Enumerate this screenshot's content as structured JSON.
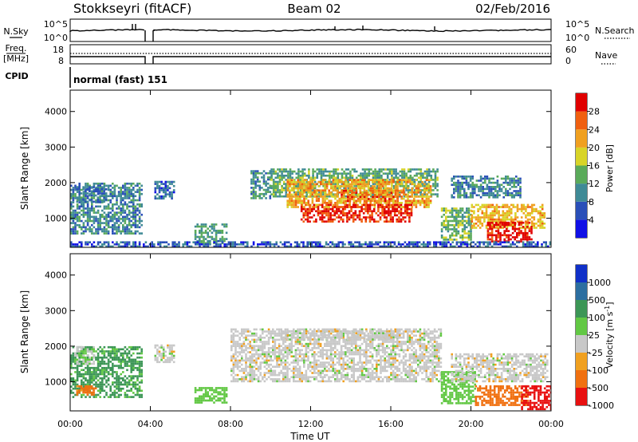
{
  "header": {
    "station": "Stokkseyri (fitACF)",
    "beam": "Beam 02",
    "date": "02/Feb/2016"
  },
  "noise_panel": {
    "left_label": "N.Sky",
    "right_label": "N.Search",
    "ticks_left": [
      "10^5",
      "10^0"
    ],
    "ticks_right": [
      "10^5",
      "10^0"
    ]
  },
  "freq_panel": {
    "left_label_line1": "Freq.",
    "left_label_line2": "[MHz]",
    "right_label": "Nave",
    "ticks_left": [
      "18",
      "8"
    ],
    "ticks_right": [
      "60",
      "0"
    ]
  },
  "cpid": {
    "label": "CPID",
    "mode": "normal (fast) 151"
  },
  "x_axis": {
    "label": "Time UT",
    "ticks": [
      "00:00",
      "04:00",
      "08:00",
      "12:00",
      "16:00",
      "20:00",
      "00:00"
    ]
  },
  "chart_data": [
    {
      "type": "heatmap",
      "name": "power",
      "ylabel": "Slant Range [km]",
      "yticks": [
        "1000",
        "2000",
        "3000",
        "4000"
      ],
      "ylim": [
        180,
        4600
      ],
      "xlim_hours": [
        0,
        24
      ],
      "colorbar": {
        "label": "Power [dB]",
        "ticks": [
          "4",
          "8",
          "12",
          "16",
          "20",
          "24",
          "28"
        ],
        "range": [
          0,
          30
        ],
        "colors": [
          "#1010e6",
          "#2a4fb8",
          "#3f8a96",
          "#5aaa5a",
          "#d8d428",
          "#f0a020",
          "#f06010",
          "#e00000"
        ]
      },
      "regions": [
        {
          "t0": 0.0,
          "t1": 3.6,
          "r0": 550,
          "r1": 2000,
          "level": 9
        },
        {
          "t0": 0.3,
          "t1": 1.8,
          "r0": 1450,
          "r1": 1900,
          "level": 8
        },
        {
          "t0": 4.2,
          "t1": 5.2,
          "r0": 1550,
          "r1": 2050,
          "level": 7
        },
        {
          "t0": 6.2,
          "t1": 7.8,
          "r0": 300,
          "r1": 850,
          "level": 11
        },
        {
          "t0": 9.0,
          "t1": 10.0,
          "r0": 1550,
          "r1": 2350,
          "level": 10
        },
        {
          "t0": 10.0,
          "t1": 18.3,
          "r0": 1600,
          "r1": 2400,
          "level": 12
        },
        {
          "t0": 10.8,
          "t1": 18.0,
          "r0": 1300,
          "r1": 2100,
          "level": 20
        },
        {
          "t0": 11.5,
          "t1": 17.0,
          "r0": 900,
          "r1": 1400,
          "level": 27
        },
        {
          "t0": 13.5,
          "t1": 16.5,
          "r0": 1450,
          "r1": 1800,
          "level": 24
        },
        {
          "t0": 18.5,
          "t1": 20.0,
          "r0": 400,
          "r1": 1300,
          "level": 13
        },
        {
          "t0": 20.0,
          "t1": 23.7,
          "r0": 700,
          "r1": 1400,
          "level": 19
        },
        {
          "t0": 20.8,
          "t1": 23.0,
          "r0": 350,
          "r1": 900,
          "level": 29
        },
        {
          "t0": 19.0,
          "t1": 22.5,
          "r0": 1600,
          "r1": 2200,
          "level": 9
        },
        {
          "t0": 0.0,
          "t1": 24.0,
          "r0": 200,
          "r1": 350,
          "level": 6
        }
      ]
    },
    {
      "type": "heatmap",
      "name": "velocity",
      "ylabel": "Slant Range [km]",
      "yticks": [
        "1000",
        "2000",
        "3000",
        "4000"
      ],
      "ylim": [
        180,
        4600
      ],
      "xlim_hours": [
        0,
        24
      ],
      "colorbar": {
        "label": "Velocity [m s",
        "label_sup": "-1",
        "label_end": "]",
        "ticks": [
          "1000",
          "500",
          "100",
          "25",
          "-25",
          "-100",
          "-500",
          "-1000"
        ],
        "colors": [
          "#1030c8",
          "#2c6ea0",
          "#3c9656",
          "#62c844",
          "#c8c8c8",
          "#f0a020",
          "#f07010",
          "#e81010"
        ]
      },
      "regions": [
        {
          "t0": 0.0,
          "t1": 3.6,
          "r0": 550,
          "r1": 2000,
          "vel": 120
        },
        {
          "t0": 0.2,
          "t1": 1.2,
          "r0": 1500,
          "r1": 2000,
          "vel": 10
        },
        {
          "t0": 0.3,
          "t1": 1.3,
          "r0": 650,
          "r1": 900,
          "vel": -120
        },
        {
          "t0": 4.2,
          "t1": 5.2,
          "r0": 1550,
          "r1": 2050,
          "vel": 0
        },
        {
          "t0": 6.2,
          "t1": 7.8,
          "r0": 400,
          "r1": 850,
          "vel": 60
        },
        {
          "t0": 8.0,
          "t1": 18.5,
          "r0": 1000,
          "r1": 2500,
          "vel": 0
        },
        {
          "t0": 10.5,
          "t1": 16.5,
          "r0": 2200,
          "r1": 2450,
          "vel": 0
        },
        {
          "t0": 18.5,
          "t1": 20.2,
          "r0": 400,
          "r1": 1300,
          "vel": 60
        },
        {
          "t0": 19.0,
          "t1": 23.8,
          "r0": 1000,
          "r1": 1800,
          "vel": 0
        },
        {
          "t0": 20.2,
          "t1": 22.8,
          "r0": 350,
          "r1": 900,
          "vel": -150
        },
        {
          "t0": 22.5,
          "t1": 24.0,
          "r0": 250,
          "r1": 900,
          "vel": -600
        }
      ]
    }
  ]
}
